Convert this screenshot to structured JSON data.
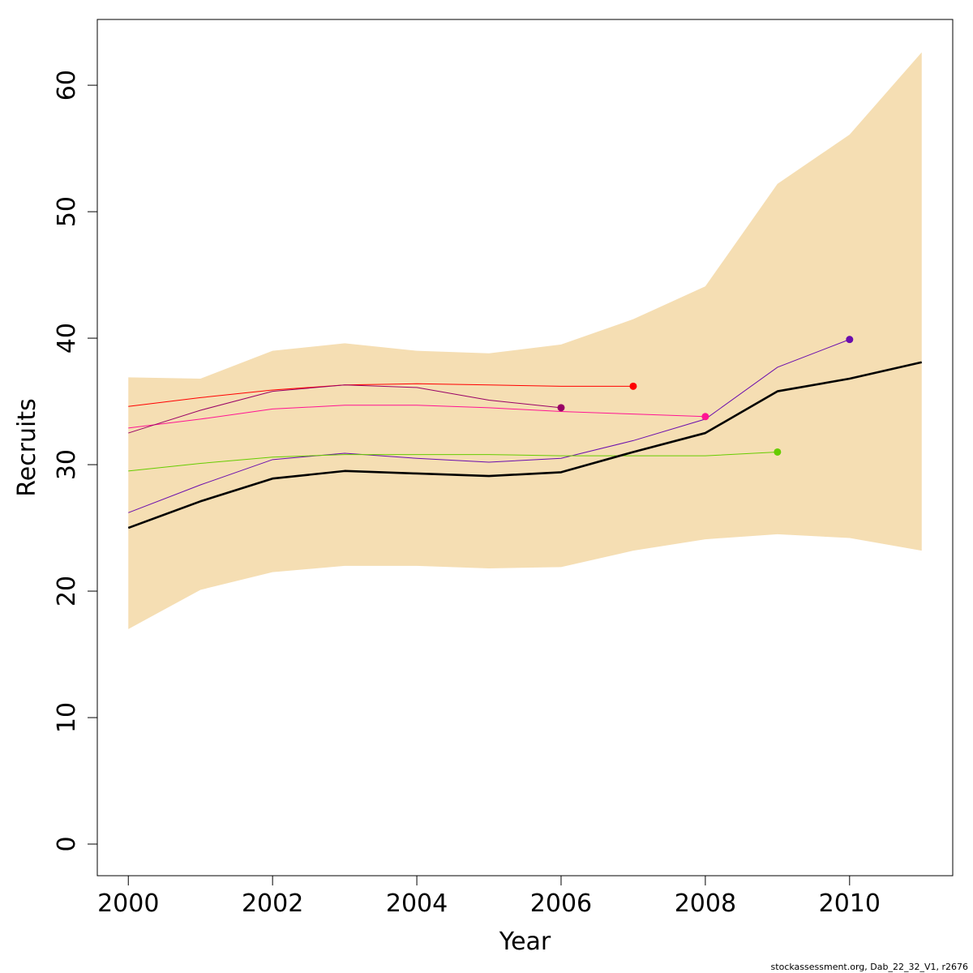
{
  "chart_data": {
    "type": "line",
    "xlabel": "Year",
    "ylabel": "Recruits",
    "xlim": [
      1999.57,
      2011.43
    ],
    "ylim": [
      -2.5,
      65.2
    ],
    "x_ticks": [
      "2000",
      "2002",
      "2004",
      "2006",
      "2008",
      "2010"
    ],
    "y_ticks": [
      "0",
      "10",
      "20",
      "30",
      "40",
      "50",
      "60"
    ],
    "grid": false,
    "confidence_band": {
      "color": "#f5deb3",
      "x": [
        2000,
        2001,
        2002,
        2003,
        2004,
        2005,
        2006,
        2007,
        2008,
        2009,
        2010,
        2011
      ],
      "upper": [
        36.9,
        36.8,
        39.0,
        39.6,
        39.0,
        38.8,
        39.5,
        41.5,
        44.1,
        52.2,
        56.1,
        62.6
      ],
      "lower": [
        17.0,
        20.1,
        21.5,
        22.0,
        22.0,
        21.8,
        21.9,
        23.2,
        24.1,
        24.5,
        24.2,
        23.2
      ]
    },
    "main_series": {
      "color": "#000000",
      "x": [
        2000,
        2001,
        2002,
        2003,
        2004,
        2005,
        2006,
        2007,
        2008,
        2009,
        2010,
        2011
      ],
      "values": [
        25.0,
        27.1,
        28.9,
        29.5,
        29.3,
        29.1,
        29.4,
        31.0,
        32.5,
        35.8,
        36.8,
        38.1
      ]
    },
    "retro_series": [
      {
        "color": "#6a0dad",
        "x": [
          2000,
          2001,
          2002,
          2003,
          2004,
          2005,
          2006,
          2007,
          2008,
          2009,
          2010
        ],
        "values": [
          26.2,
          28.4,
          30.4,
          30.9,
          30.5,
          30.2,
          30.5,
          31.9,
          33.6,
          37.7,
          39.9
        ]
      },
      {
        "color": "#66cc00",
        "x": [
          2000,
          2001,
          2002,
          2003,
          2004,
          2005,
          2006,
          2007,
          2008,
          2009
        ],
        "values": [
          29.5,
          30.1,
          30.6,
          30.8,
          30.8,
          30.8,
          30.7,
          30.7,
          30.7,
          31.0
        ]
      },
      {
        "color": "#ff1493",
        "x": [
          2000,
          2001,
          2002,
          2003,
          2004,
          2005,
          2006,
          2007,
          2008
        ],
        "values": [
          32.9,
          33.6,
          34.4,
          34.7,
          34.7,
          34.5,
          34.2,
          34.0,
          33.8
        ]
      },
      {
        "color": "#ff0000",
        "x": [
          2000,
          2001,
          2002,
          2003,
          2004,
          2005,
          2006,
          2007
        ],
        "values": [
          34.6,
          35.3,
          35.9,
          36.3,
          36.4,
          36.3,
          36.2,
          36.2
        ]
      },
      {
        "color": "#990066",
        "x": [
          2000,
          2001,
          2002,
          2003,
          2004,
          2005,
          2006
        ],
        "values": [
          32.5,
          34.3,
          35.8,
          36.3,
          36.1,
          35.1,
          34.5
        ]
      }
    ]
  },
  "footer_text": "stockassessment.org, Dab_22_32_V1, r2676"
}
